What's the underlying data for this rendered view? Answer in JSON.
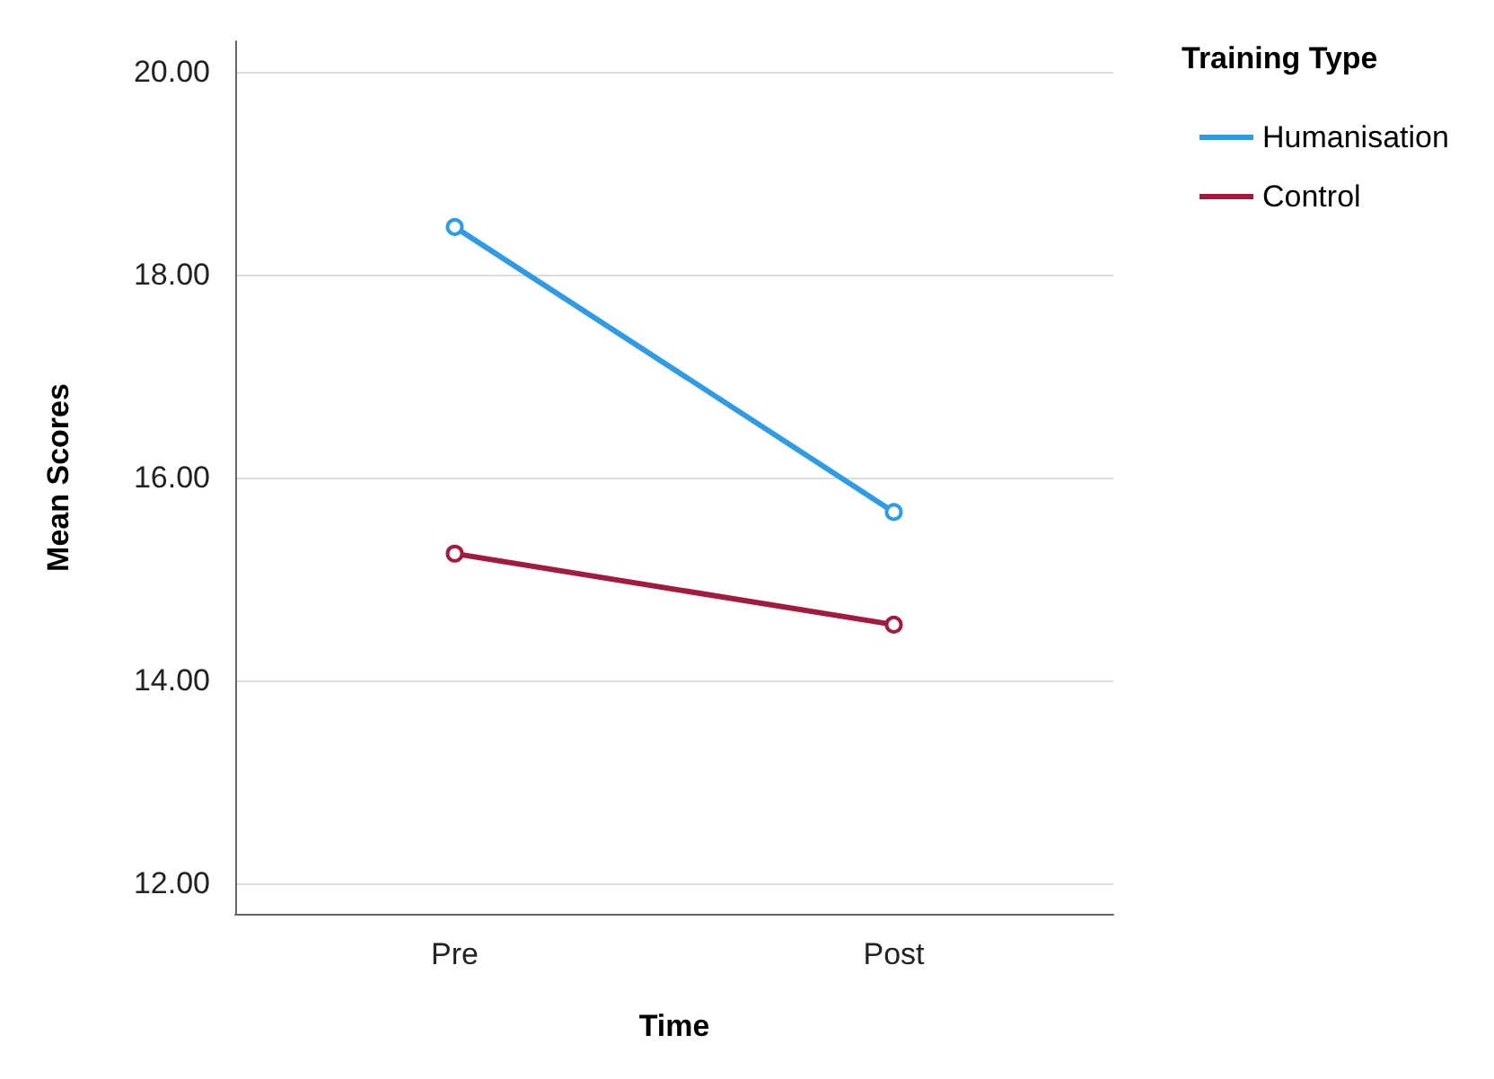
{
  "chart_data": {
    "type": "line",
    "xlabel": "Time",
    "ylabel": "Mean Scores",
    "legend_title": "Training Type",
    "categories": [
      "Pre",
      "Post"
    ],
    "series": [
      {
        "name": "Humanisation",
        "color": "#2e9be6",
        "values": [
          18.47,
          15.66
        ]
      },
      {
        "name": "Control",
        "color": "#a31a3f",
        "values": [
          15.25,
          14.55
        ]
      }
    ],
    "ylim": [
      11.7,
      20.3
    ],
    "yticks": [
      {
        "value": 12,
        "label": "12.00"
      },
      {
        "value": 14,
        "label": "14.00"
      },
      {
        "value": 16,
        "label": "16.00"
      },
      {
        "value": 18,
        "label": "18.00"
      },
      {
        "value": 20,
        "label": "20.00"
      }
    ],
    "grid": "y",
    "legend": "top right",
    "marker": "circle",
    "line_style": "solid"
  }
}
